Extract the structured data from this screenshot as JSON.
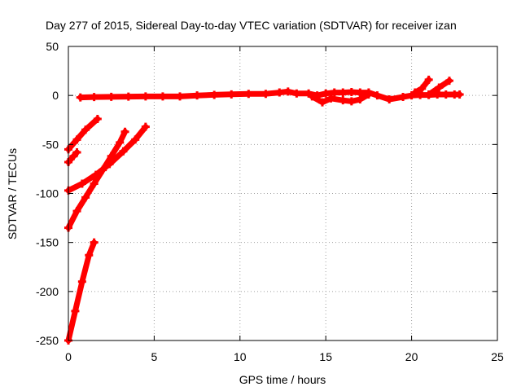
{
  "chart_data": {
    "type": "scatter",
    "title": "Day 277 of 2015, Sidereal Day-to-day VTEC variation (SDTVAR) for receiver izan",
    "xlabel": "GPS time / hours",
    "ylabel": "SDTVAR / TECUs",
    "xlim": [
      0,
      25
    ],
    "ylim": [
      -250,
      50
    ],
    "xticks": [
      0,
      5,
      10,
      15,
      20,
      25
    ],
    "xtick_labels": [
      "0",
      "5",
      "10",
      "15",
      "20",
      "25"
    ],
    "yticks": [
      50,
      0,
      -50,
      -100,
      -150,
      -200,
      -250
    ],
    "ytick_labels": [
      "50",
      "0",
      "-50",
      "-100",
      "-150",
      "-200",
      "-250"
    ],
    "grid": true,
    "legend": "none",
    "color": "#ff0000",
    "series": [
      {
        "values": [
          [
            0.7,
            -2
          ],
          [
            1.5,
            -1.6
          ],
          [
            2.5,
            -1.4
          ],
          [
            3.5,
            -1.2
          ],
          [
            4.5,
            -1
          ],
          [
            5.5,
            -1
          ],
          [
            6.5,
            -1
          ],
          [
            7.5,
            0
          ],
          [
            8.5,
            0.6
          ],
          [
            9.5,
            1.1
          ],
          [
            10.5,
            1.6
          ],
          [
            11.5,
            1.6
          ],
          [
            12.3,
            3
          ],
          [
            12.8,
            4
          ],
          [
            13.3,
            2
          ],
          [
            14.0,
            2
          ],
          [
            14.5,
            0
          ],
          [
            15.0,
            2
          ],
          [
            15.5,
            3
          ],
          [
            16.0,
            3
          ],
          [
            16.5,
            3.5
          ],
          [
            17.0,
            3
          ],
          [
            17.5,
            3
          ],
          [
            18.0,
            0
          ],
          [
            18.7,
            -4
          ],
          [
            19.5,
            -1.5
          ],
          [
            20.0,
            0
          ],
          [
            20.5,
            0.5
          ],
          [
            21.0,
            0.5
          ],
          [
            21.5,
            1
          ],
          [
            22.0,
            1
          ],
          [
            22.5,
            1
          ],
          [
            22.8,
            1
          ]
        ]
      },
      {
        "values": [
          [
            14.2,
            -1
          ],
          [
            14.8,
            -7
          ],
          [
            15.3,
            -3
          ],
          [
            16.0,
            -5
          ],
          [
            16.5,
            -6
          ],
          [
            17.0,
            -4
          ],
          [
            17.5,
            1
          ]
        ]
      },
      {
        "values": [
          [
            20.2,
            3
          ],
          [
            20.6,
            7
          ],
          [
            21.0,
            16
          ]
        ]
      },
      {
        "values": [
          [
            21.0,
            1
          ],
          [
            21.6,
            8
          ],
          [
            22.2,
            15
          ]
        ]
      },
      {
        "values": [
          [
            0,
            -55
          ],
          [
            0.5,
            -45
          ],
          [
            1.0,
            -35
          ],
          [
            1.7,
            -24
          ]
        ]
      },
      {
        "values": [
          [
            0,
            -68
          ],
          [
            0.3,
            -62
          ],
          [
            0.5,
            -58
          ]
        ]
      },
      {
        "values": [
          [
            0,
            -97
          ],
          [
            0.8,
            -90
          ],
          [
            1.6,
            -81
          ],
          [
            2.4,
            -70
          ],
          [
            3.2,
            -57
          ],
          [
            3.9,
            -45
          ],
          [
            4.5,
            -32
          ]
        ]
      },
      {
        "values": [
          [
            0,
            -135
          ],
          [
            0.5,
            -118
          ],
          [
            1.0,
            -104
          ],
          [
            1.5,
            -90
          ],
          [
            2.0,
            -76
          ],
          [
            2.5,
            -62
          ],
          [
            3.0,
            -48
          ],
          [
            3.3,
            -37
          ]
        ]
      },
      {
        "values": [
          [
            0,
            -250
          ],
          [
            0.4,
            -220
          ],
          [
            0.8,
            -190
          ],
          [
            1.2,
            -163
          ],
          [
            1.5,
            -150
          ]
        ]
      }
    ]
  }
}
